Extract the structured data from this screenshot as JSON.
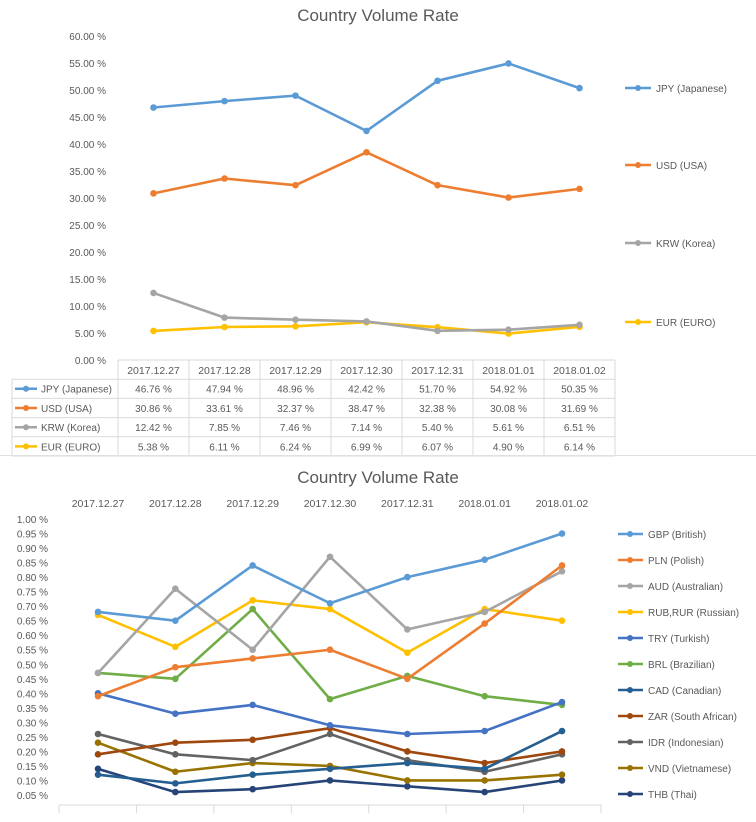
{
  "chart_data": [
    {
      "type": "line",
      "title": "Country Volume Rate",
      "categories": [
        "2017.12.27",
        "2017.12.28",
        "2017.12.29",
        "2017.12.30",
        "2017.12.31",
        "2018.01.01",
        "2018.01.02"
      ],
      "ylim": [
        0,
        60
      ],
      "yticks": [
        "0.00 %",
        "5.00 %",
        "10.00 %",
        "15.00 %",
        "20.00 %",
        "25.00 %",
        "30.00 %",
        "35.00 %",
        "40.00 %",
        "45.00 %",
        "50.00 %",
        "55.00 %",
        "60.00 %"
      ],
      "legend_position": "right",
      "grid": false,
      "data_table": true,
      "series": [
        {
          "name": "JPY (Japanese)",
          "color": "#5b9bd5",
          "values": [
            46.76,
            47.94,
            48.96,
            42.42,
            51.7,
            54.92,
            50.35
          ],
          "labels": [
            "46.76 %",
            "47.94 %",
            "48.96 %",
            "42.42 %",
            "51.70 %",
            "54.92 %",
            "50.35 %"
          ]
        },
        {
          "name": "USD (USA)",
          "color": "#ed7d31",
          "values": [
            30.86,
            33.61,
            32.37,
            38.47,
            32.38,
            30.08,
            31.69
          ],
          "labels": [
            "30.86 %",
            "33.61 %",
            "32.37 %",
            "38.47 %",
            "32.38 %",
            "30.08 %",
            "31.69 %"
          ]
        },
        {
          "name": "KRW (Korea)",
          "color": "#a5a5a5",
          "values": [
            12.42,
            7.85,
            7.46,
            7.14,
            5.4,
            5.61,
            6.51
          ],
          "labels": [
            "12.42 %",
            "7.85 %",
            "7.46 %",
            "7.14 %",
            "5.40 %",
            "5.61 %",
            "6.51 %"
          ]
        },
        {
          "name": "EUR (EURO)",
          "color": "#ffc000",
          "values": [
            5.38,
            6.11,
            6.24,
            6.99,
            6.07,
            4.9,
            6.14
          ],
          "labels": [
            "5.38 %",
            "6.11 %",
            "6.24 %",
            "6.99 %",
            "6.07 %",
            "4.90 %",
            "6.14 %"
          ]
        }
      ]
    },
    {
      "type": "line",
      "title": "Country Volume Rate",
      "categories": [
        "2017.12.27",
        "2017.12.28",
        "2017.12.29",
        "2017.12.30",
        "2017.12.31",
        "2018.01.01",
        "2018.01.02"
      ],
      "ylim": [
        0.05,
        1.0
      ],
      "yticks": [
        "0.05 %",
        "0.10 %",
        "0.15 %",
        "0.20 %",
        "0.25 %",
        "0.30 %",
        "0.35 %",
        "0.40 %",
        "0.45 %",
        "0.50 %",
        "0.55 %",
        "0.60 %",
        "0.65 %",
        "0.70 %",
        "0.75 %",
        "0.80 %",
        "0.85 %",
        "0.90 %",
        "0.95 %",
        "1.00 %"
      ],
      "legend_position": "right",
      "grid": false,
      "xaxis_position": "top",
      "series": [
        {
          "name": "GBP (British)",
          "color": "#5b9bd5",
          "values": [
            0.68,
            0.65,
            0.84,
            0.71,
            0.8,
            0.86,
            0.95
          ]
        },
        {
          "name": "PLN (Polish)",
          "color": "#ed7d31",
          "values": [
            0.39,
            0.49,
            0.52,
            0.55,
            0.45,
            0.64,
            0.84
          ]
        },
        {
          "name": "AUD (Australian)",
          "color": "#a5a5a5",
          "values": [
            0.47,
            0.76,
            0.55,
            0.87,
            0.62,
            0.68,
            0.82
          ]
        },
        {
          "name": "RUB,RUR (Russian)",
          "color": "#ffc000",
          "values": [
            0.67,
            0.56,
            0.72,
            0.69,
            0.54,
            0.69,
            0.65
          ]
        },
        {
          "name": "TRY (Turkish)",
          "color": "#4472c4",
          "values": [
            0.4,
            0.33,
            0.36,
            0.29,
            0.26,
            0.27,
            0.37
          ]
        },
        {
          "name": "BRL (Brazilian)",
          "color": "#70ad47",
          "values": [
            0.47,
            0.45,
            0.69,
            0.38,
            0.46,
            0.39,
            0.36
          ]
        },
        {
          "name": "CAD (Canadian)",
          "color": "#255e91",
          "values": [
            0.12,
            0.09,
            0.12,
            0.14,
            0.16,
            0.14,
            0.27
          ]
        },
        {
          "name": "ZAR (South African)",
          "color": "#9e480e",
          "values": [
            0.19,
            0.23,
            0.24,
            0.28,
            0.2,
            0.16,
            0.2
          ]
        },
        {
          "name": "IDR (Indonesian)",
          "color": "#636363",
          "values": [
            0.26,
            0.19,
            0.17,
            0.26,
            0.17,
            0.13,
            0.19
          ]
        },
        {
          "name": "VND (Vietnamese)",
          "color": "#997300",
          "values": [
            0.23,
            0.13,
            0.16,
            0.15,
            0.1,
            0.1,
            0.12
          ]
        },
        {
          "name": "THB (Thai)",
          "color": "#264478",
          "values": [
            0.14,
            0.06,
            0.07,
            0.1,
            0.08,
            0.06,
            0.1
          ]
        }
      ]
    }
  ]
}
